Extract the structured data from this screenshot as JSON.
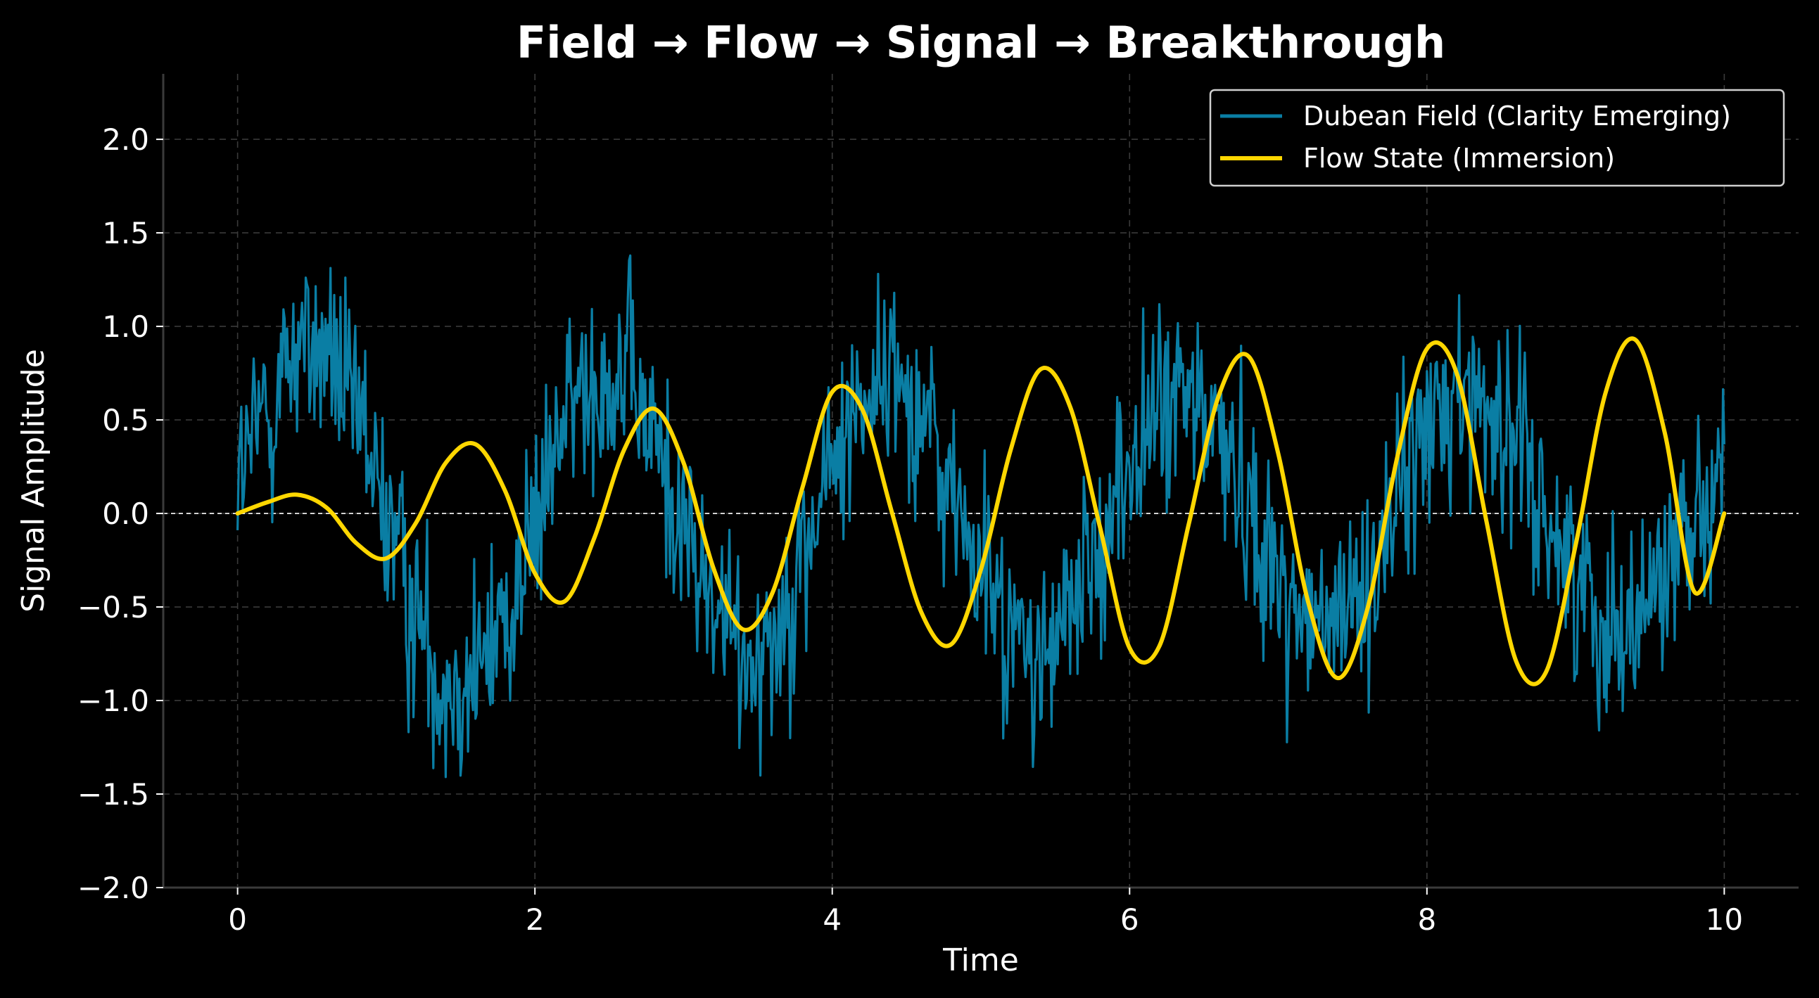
{
  "chart_data": {
    "type": "line",
    "title": "Field → Flow → Signal → Breakthrough",
    "xlabel": "Time",
    "ylabel": "Signal Amplitude",
    "xlim": [
      -0.5,
      10.5
    ],
    "ylim": [
      -2.0,
      2.35
    ],
    "xticks": [
      0,
      2,
      4,
      6,
      8,
      10
    ],
    "yticks": [
      -2.0,
      -1.5,
      -1.0,
      -0.5,
      0.0,
      0.5,
      1.0,
      1.5,
      2.0
    ],
    "xtick_labels": [
      "0",
      "2",
      "4",
      "6",
      "8",
      "10"
    ],
    "ytick_labels": [
      "−2.0",
      "−1.5",
      "−1.0",
      "−0.5",
      "0.0",
      "0.5",
      "1.0",
      "1.5",
      "2.0"
    ],
    "grid": true,
    "reference_line_y": 0.0,
    "legend_position": "upper right",
    "background": "#000000",
    "series": [
      {
        "name": "Dubean Field (Clarity Emerging)",
        "color": "#0a7ea4",
        "style": "noisy",
        "x": [
          0.0,
          0.2,
          0.4,
          0.6,
          0.8,
          1.0,
          1.2,
          1.4,
          1.6,
          1.8,
          2.0,
          2.2,
          2.4,
          2.6,
          2.8,
          3.0,
          3.2,
          3.4,
          3.6,
          3.8,
          4.0,
          4.2,
          4.4,
          4.6,
          4.8,
          5.0,
          5.2,
          5.4,
          5.6,
          5.8,
          6.0,
          6.2,
          6.4,
          6.6,
          6.8,
          7.0,
          7.2,
          7.4,
          7.6,
          7.8,
          8.0,
          8.2,
          8.4,
          8.6,
          8.8,
          9.0,
          9.2,
          9.4,
          9.6,
          9.8,
          10.0
        ],
        "y": [
          0.2,
          0.55,
          0.9,
          0.85,
          0.5,
          0.0,
          -0.55,
          -0.9,
          -0.85,
          -0.55,
          -0.1,
          0.5,
          0.75,
          0.75,
          0.4,
          -0.1,
          -0.5,
          -0.75,
          -0.65,
          -0.25,
          0.25,
          0.65,
          0.75,
          0.55,
          0.1,
          -0.3,
          -0.65,
          -0.8,
          -0.55,
          -0.15,
          0.25,
          0.55,
          0.6,
          0.45,
          0.05,
          -0.35,
          -0.6,
          -0.6,
          -0.35,
          0.05,
          0.45,
          0.65,
          0.6,
          0.35,
          0.0,
          -0.35,
          -0.55,
          -0.55,
          -0.3,
          0.05,
          0.2
        ],
        "noise_amplitude": 0.38
      },
      {
        "name": "Flow State (Immersion)",
        "color": "#ffd700",
        "style": "smooth",
        "x": [
          0.0,
          0.2,
          0.4,
          0.6,
          0.8,
          1.0,
          1.2,
          1.4,
          1.6,
          1.8,
          2.0,
          2.2,
          2.4,
          2.6,
          2.8,
          3.0,
          3.2,
          3.4,
          3.6,
          3.8,
          4.0,
          4.2,
          4.4,
          4.6,
          4.8,
          5.0,
          5.2,
          5.4,
          5.6,
          5.8,
          6.0,
          6.2,
          6.4,
          6.6,
          6.8,
          7.0,
          7.2,
          7.4,
          7.6,
          7.8,
          8.0,
          8.2,
          8.4,
          8.6,
          8.8,
          9.0,
          9.2,
          9.4,
          9.6,
          9.8,
          10.0
        ],
        "y": [
          0.0,
          0.06,
          0.1,
          0.03,
          -0.16,
          -0.24,
          -0.05,
          0.27,
          0.37,
          0.12,
          -0.32,
          -0.47,
          -0.13,
          0.34,
          0.56,
          0.27,
          -0.29,
          -0.62,
          -0.42,
          0.14,
          0.65,
          0.56,
          0.01,
          -0.53,
          -0.7,
          -0.3,
          0.34,
          0.77,
          0.57,
          -0.07,
          -0.72,
          -0.71,
          -0.05,
          0.63,
          0.84,
          0.32,
          -0.47,
          -0.88,
          -0.51,
          0.3,
          0.88,
          0.75,
          -0.04,
          -0.79,
          -0.85,
          -0.17,
          0.64,
          0.93,
          0.43,
          -0.42,
          0.0
        ]
      }
    ]
  }
}
